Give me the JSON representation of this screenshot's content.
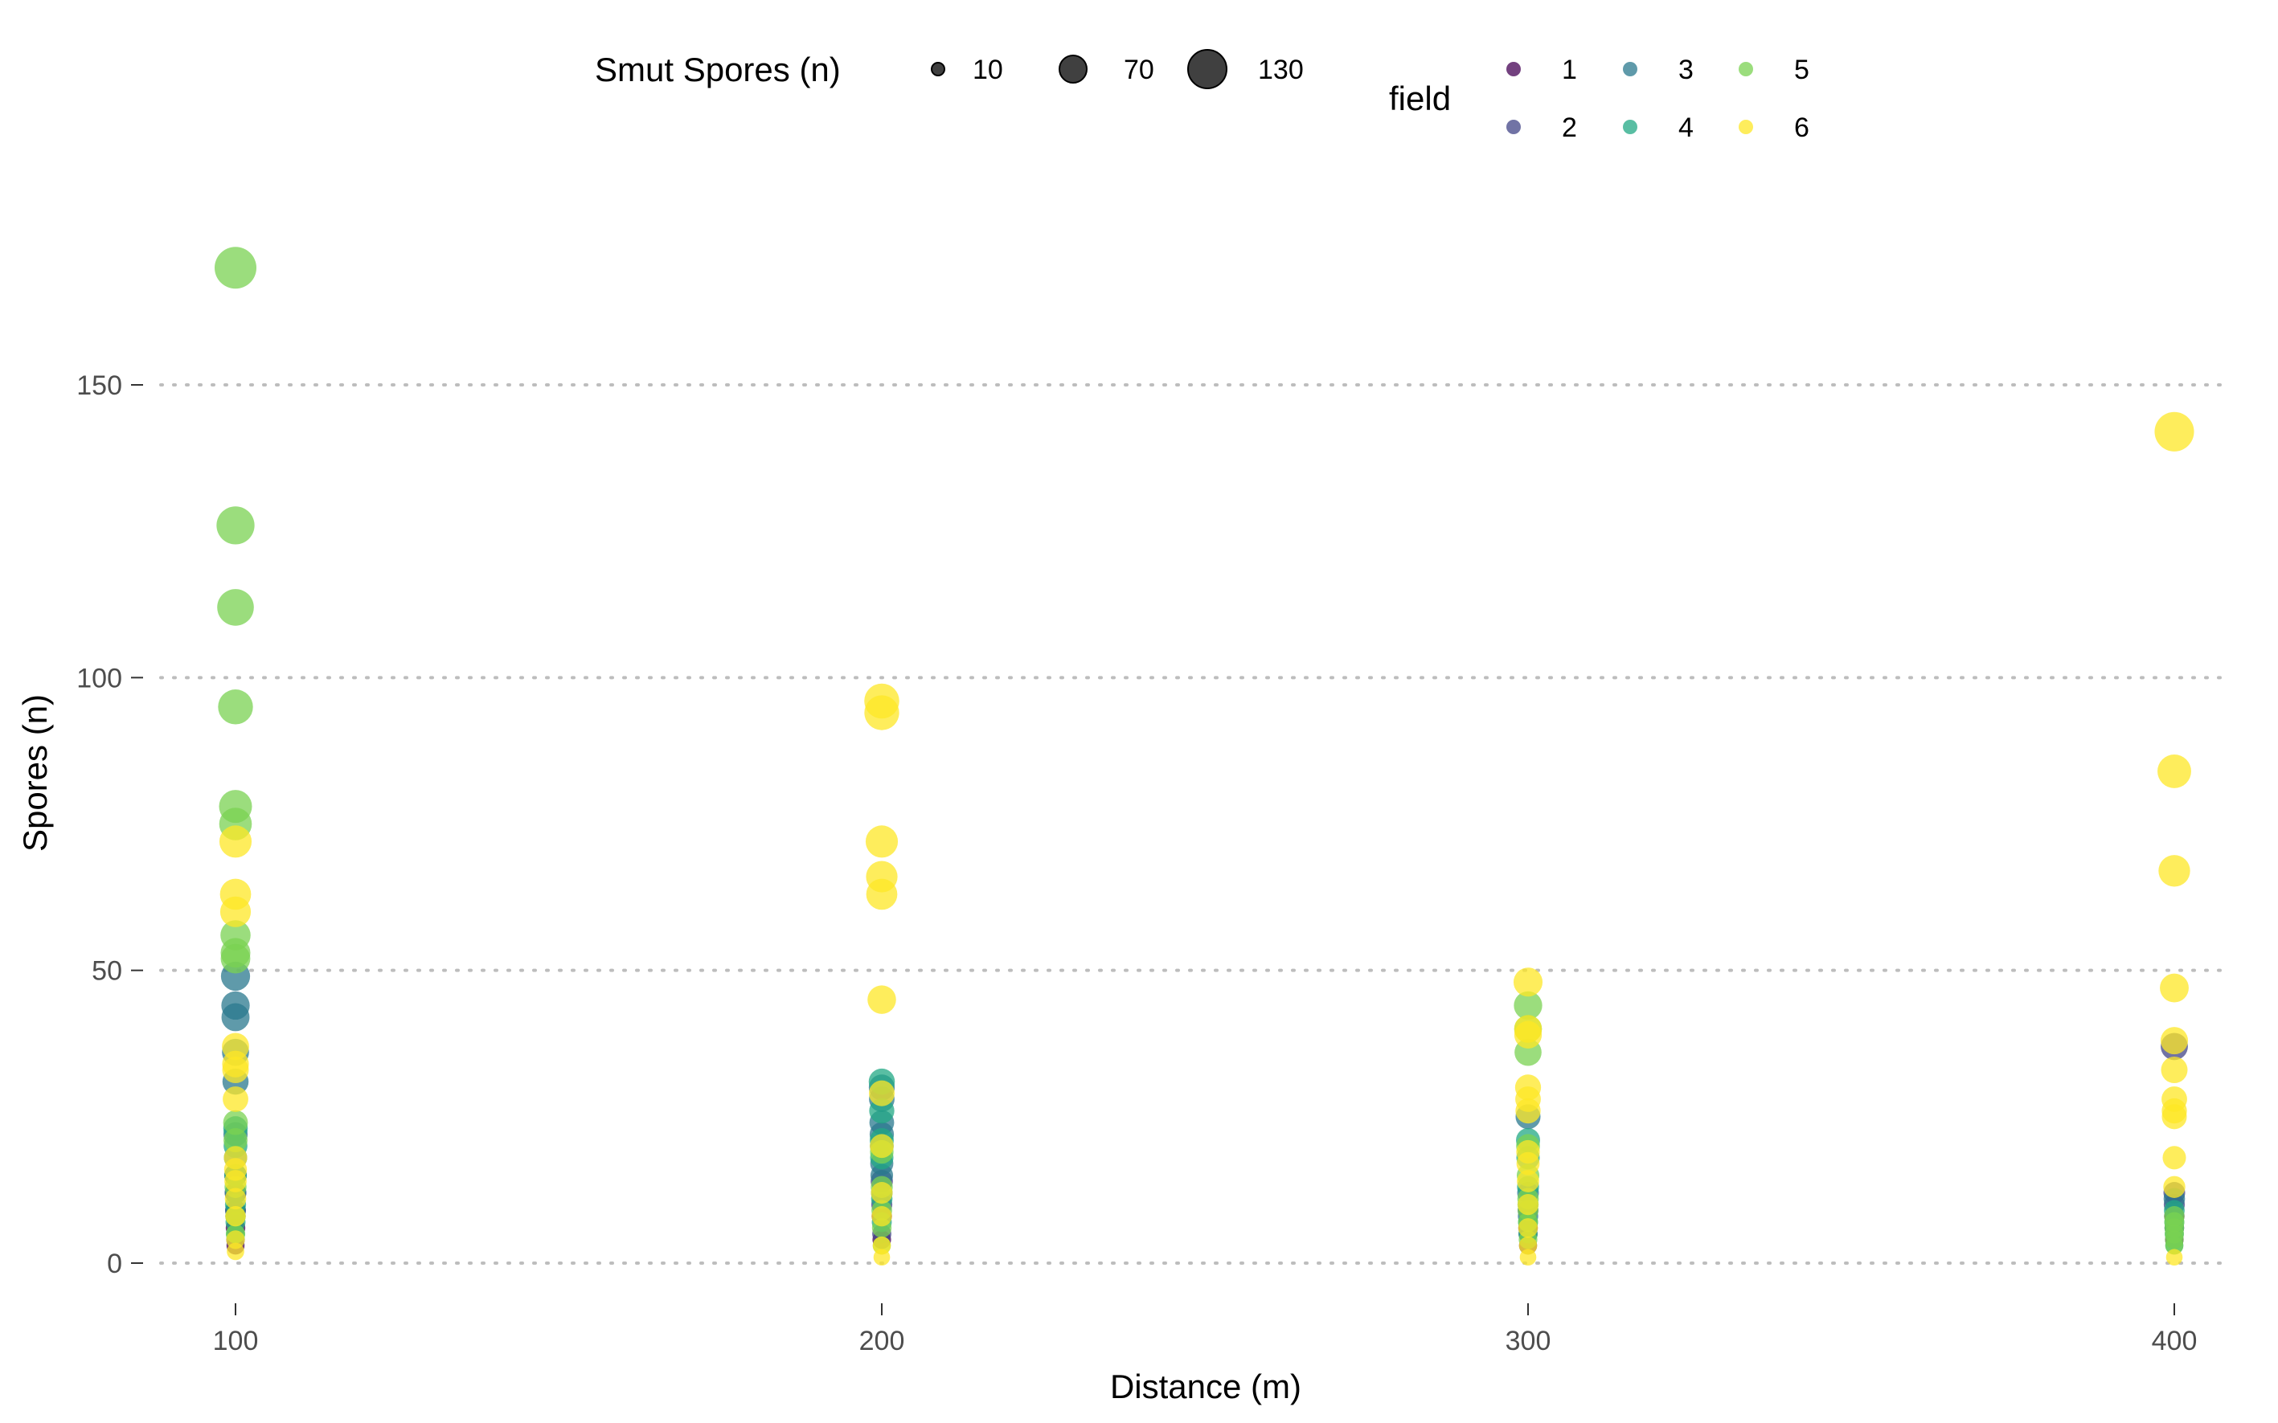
{
  "chart_data": {
    "type": "scatter",
    "title": "",
    "xlabel": "Distance (m)",
    "ylabel": "Spores (n)",
    "x_ticks": [
      100,
      200,
      300,
      400
    ],
    "y_ticks": [
      0,
      50,
      100,
      150
    ],
    "xlim": [
      82,
      409
    ],
    "ylim": [
      -8,
      180
    ],
    "grid": "horizontal-dotted",
    "legend_placement": "top",
    "size_legend": {
      "title": "Smut Spores (n)",
      "entries": [
        {
          "label": "10",
          "value": 10
        },
        {
          "label": "70",
          "value": 70
        },
        {
          "label": "130",
          "value": 130
        }
      ]
    },
    "color_legend": {
      "title": "field",
      "entries": [
        {
          "label": "1",
          "color": "#440154"
        },
        {
          "label": "2",
          "color": "#414487"
        },
        {
          "label": "3",
          "color": "#2A788E"
        },
        {
          "label": "4",
          "color": "#22A884"
        },
        {
          "label": "5",
          "color": "#7AD151"
        },
        {
          "label": "6",
          "color": "#FDE725"
        }
      ]
    },
    "series": [
      {
        "name": "1",
        "color": "#440154",
        "points": [
          [
            100,
            3
          ],
          [
            100,
            6
          ],
          [
            100,
            9
          ],
          [
            200,
            4
          ],
          [
            200,
            8
          ],
          [
            300,
            3
          ],
          [
            300,
            6
          ],
          [
            400,
            4
          ],
          [
            400,
            8
          ]
        ]
      },
      {
        "name": "2",
        "color": "#414487",
        "points": [
          [
            100,
            4
          ],
          [
            100,
            8
          ],
          [
            100,
            12
          ],
          [
            100,
            15
          ],
          [
            200,
            5
          ],
          [
            200,
            10
          ],
          [
            200,
            14
          ],
          [
            300,
            5
          ],
          [
            300,
            9
          ],
          [
            400,
            6
          ],
          [
            400,
            10
          ],
          [
            400,
            12
          ],
          [
            400,
            37
          ]
        ]
      },
      {
        "name": "3",
        "color": "#2A788E",
        "points": [
          [
            100,
            49
          ],
          [
            100,
            44
          ],
          [
            100,
            42
          ],
          [
            100,
            36
          ],
          [
            100,
            31
          ],
          [
            100,
            22
          ],
          [
            100,
            18
          ],
          [
            100,
            12
          ],
          [
            100,
            9
          ],
          [
            200,
            30
          ],
          [
            200,
            28
          ],
          [
            200,
            24
          ],
          [
            200,
            22
          ],
          [
            200,
            20
          ],
          [
            200,
            17
          ],
          [
            200,
            15
          ],
          [
            200,
            12
          ],
          [
            300,
            25
          ],
          [
            300,
            12
          ],
          [
            300,
            8
          ],
          [
            400,
            11
          ],
          [
            400,
            6
          ]
        ]
      },
      {
        "name": "4",
        "color": "#22A884",
        "points": [
          [
            100,
            23
          ],
          [
            100,
            20
          ],
          [
            100,
            15
          ],
          [
            100,
            10
          ],
          [
            100,
            7
          ],
          [
            100,
            5
          ],
          [
            200,
            31
          ],
          [
            200,
            26
          ],
          [
            200,
            21
          ],
          [
            200,
            18
          ],
          [
            200,
            11
          ],
          [
            200,
            7
          ],
          [
            300,
            21
          ],
          [
            300,
            18
          ],
          [
            300,
            13
          ],
          [
            300,
            10
          ],
          [
            300,
            7
          ],
          [
            300,
            5
          ],
          [
            400,
            9
          ],
          [
            400,
            7
          ],
          [
            400,
            5
          ],
          [
            400,
            3
          ]
        ]
      },
      {
        "name": "5",
        "color": "#7AD151",
        "points": [
          [
            100,
            170
          ],
          [
            100,
            126
          ],
          [
            100,
            112
          ],
          [
            100,
            95
          ],
          [
            100,
            78
          ],
          [
            100,
            75
          ],
          [
            100,
            56
          ],
          [
            100,
            53
          ],
          [
            100,
            52
          ],
          [
            100,
            24
          ],
          [
            100,
            21
          ],
          [
            100,
            13
          ],
          [
            100,
            8
          ],
          [
            100,
            5
          ],
          [
            200,
            19
          ],
          [
            200,
            13
          ],
          [
            200,
            9
          ],
          [
            200,
            6
          ],
          [
            200,
            3
          ],
          [
            300,
            44
          ],
          [
            300,
            40
          ],
          [
            300,
            36
          ],
          [
            300,
            20
          ],
          [
            300,
            15
          ],
          [
            300,
            11
          ],
          [
            300,
            9
          ],
          [
            300,
            7
          ],
          [
            300,
            4
          ],
          [
            400,
            8
          ],
          [
            400,
            7
          ],
          [
            400,
            6
          ],
          [
            400,
            5
          ],
          [
            400,
            4
          ],
          [
            400,
            3
          ]
        ]
      },
      {
        "name": "6",
        "color": "#FDE725",
        "points": [
          [
            100,
            72
          ],
          [
            100,
            63
          ],
          [
            100,
            60
          ],
          [
            100,
            37
          ],
          [
            100,
            34
          ],
          [
            100,
            33
          ],
          [
            100,
            28
          ],
          [
            100,
            18
          ],
          [
            100,
            16
          ],
          [
            100,
            14
          ],
          [
            100,
            11
          ],
          [
            100,
            8
          ],
          [
            100,
            4
          ],
          [
            100,
            2
          ],
          [
            200,
            96
          ],
          [
            200,
            94
          ],
          [
            200,
            72
          ],
          [
            200,
            66
          ],
          [
            200,
            63
          ],
          [
            200,
            45
          ],
          [
            200,
            29
          ],
          [
            200,
            20
          ],
          [
            200,
            12
          ],
          [
            200,
            8
          ],
          [
            200,
            3
          ],
          [
            200,
            1
          ],
          [
            300,
            48
          ],
          [
            300,
            40
          ],
          [
            300,
            39
          ],
          [
            300,
            30
          ],
          [
            300,
            28
          ],
          [
            300,
            26
          ],
          [
            300,
            19
          ],
          [
            300,
            17
          ],
          [
            300,
            14
          ],
          [
            300,
            10
          ],
          [
            300,
            6
          ],
          [
            300,
            3
          ],
          [
            300,
            1
          ],
          [
            400,
            142
          ],
          [
            400,
            84
          ],
          [
            400,
            67
          ],
          [
            400,
            47
          ],
          [
            400,
            38
          ],
          [
            400,
            33
          ],
          [
            400,
            28
          ],
          [
            400,
            26
          ],
          [
            400,
            25
          ],
          [
            400,
            18
          ],
          [
            400,
            13
          ],
          [
            400,
            1
          ]
        ]
      }
    ]
  }
}
